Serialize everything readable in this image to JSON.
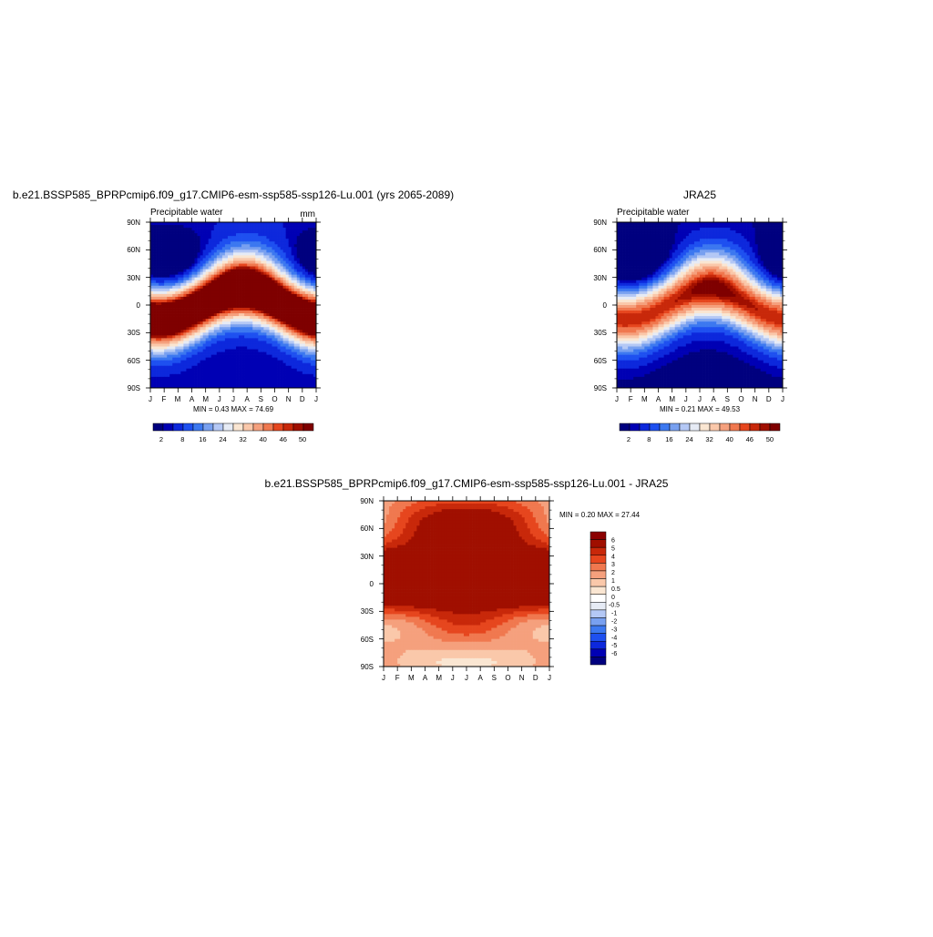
{
  "palettes": {
    "full": [
      "#00007f",
      "#0000b4",
      "#0d28dc",
      "#1e50f0",
      "#3c78f0",
      "#78a0f0",
      "#b4c8f5",
      "#e6ebf5",
      "#fae6d2",
      "#fac8aa",
      "#f5a07d",
      "#f0784f",
      "#e6461e",
      "#c8280a",
      "#a00f00",
      "#7f0000"
    ],
    "diff": [
      "#00007f",
      "#0000b4",
      "#0d28dc",
      "#1e50f0",
      "#3c78f0",
      "#78a0f0",
      "#b4c8f5",
      "#e6ebf5",
      "#ffffff",
      "#fae6d2",
      "#fac8aa",
      "#f5a07d",
      "#f0784f",
      "#e6461e",
      "#c8280a",
      "#a00f00",
      "#8b0000"
    ]
  },
  "chart_data": [
    {
      "type": "heatmap",
      "title": "b.e21.BSSP585_BPRPcmip6.f09_g17.CMIP6-esm-ssp585-ssp126-Lu.001 (yrs 2065-2089)",
      "left_label": "Precipitable water",
      "right_label": "mm",
      "x_ticks": [
        "J",
        "F",
        "M",
        "A",
        "M",
        "J",
        "J",
        "A",
        "S",
        "O",
        "N",
        "D",
        "J"
      ],
      "y_ticks": [
        "90N",
        "60N",
        "30N",
        "0",
        "30S",
        "60S",
        "90S"
      ],
      "minmax": "MIN =   0.43 MAX =  74.69",
      "levels": [
        2,
        4,
        8,
        12,
        16,
        20,
        24,
        28,
        32,
        36,
        40,
        44,
        46,
        48,
        50
      ],
      "colorbar_labels": [
        "2",
        "8",
        "16",
        "24",
        "32",
        "40",
        "46",
        "50"
      ],
      "palette": "full",
      "field": {
        "kind": "abs",
        "eq": 68,
        "a": 16,
        "amp": 11,
        "base": 2.5,
        "north": 1,
        "south": 0,
        "width": 32
      }
    },
    {
      "type": "heatmap",
      "title": "JRA25",
      "left_label": "Precipitable water",
      "right_label": "",
      "x_ticks": [
        "J",
        "F",
        "M",
        "A",
        "M",
        "J",
        "J",
        "A",
        "S",
        "O",
        "N",
        "D",
        "J"
      ],
      "y_ticks": [
        "90N",
        "60N",
        "30N",
        "0",
        "30S",
        "60S",
        "90S"
      ],
      "minmax": "MIN =   0.21 MAX =  49.53",
      "levels": [
        2,
        4,
        8,
        12,
        16,
        20,
        24,
        28,
        32,
        36,
        40,
        44,
        46,
        48,
        50
      ],
      "colorbar_labels": [
        "2",
        "8",
        "16",
        "24",
        "32",
        "40",
        "46",
        "50"
      ],
      "palette": "full",
      "field": {
        "kind": "abs",
        "eq": 48,
        "a": 16,
        "amp": 11,
        "base": 1.2,
        "north": 0.5,
        "south": 0,
        "width": 32
      }
    },
    {
      "type": "heatmap",
      "title": "b.e21.BSSP585_BPRPcmip6.f09_g17.CMIP6-esm-ssp585-ssp126-Lu.001 - JRA25",
      "left_label": "",
      "right_label": "",
      "x_ticks": [
        "J",
        "F",
        "M",
        "A",
        "M",
        "J",
        "J",
        "A",
        "S",
        "O",
        "N",
        "D",
        "J"
      ],
      "y_ticks": [
        "90N",
        "60N",
        "30N",
        "0",
        "30S",
        "60S",
        "90S"
      ],
      "minmax": "MIN =   0.20 MAX =  27.44",
      "levels": [
        -6,
        -5,
        -4,
        -3,
        -2,
        -1,
        -0.5,
        0,
        0.5,
        1,
        2,
        3,
        4,
        5,
        6
      ],
      "colorbar_labels": [
        "6",
        "5",
        "4",
        "3",
        "2",
        "1",
        "0.5",
        "0",
        "-0.5",
        "-1",
        "-2",
        "-3",
        "-4",
        "-5",
        "-6"
      ],
      "palette": "diff",
      "field": {
        "kind": "diff"
      }
    }
  ]
}
